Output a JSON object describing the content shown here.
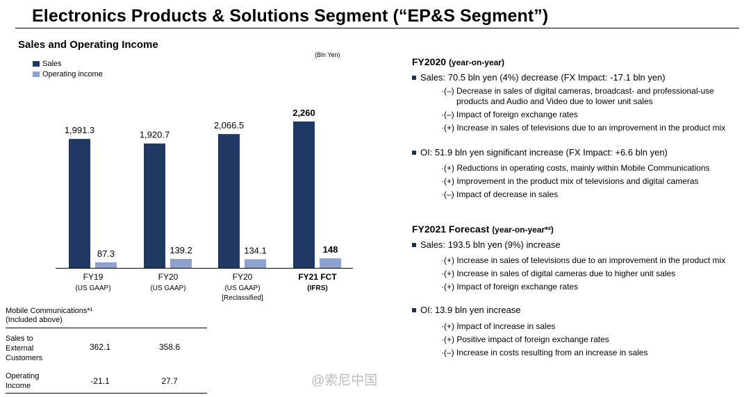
{
  "page": {
    "title": "Electronics Products & Solutions Segment (“EP&S Segment”)",
    "chart_heading": "Sales and Operating Income",
    "unit": "(Bln Yen)"
  },
  "colors": {
    "sales": "#1f3864",
    "operating_income": "#8ea2cf"
  },
  "chart_data": {
    "type": "bar",
    "categories": [
      "FY19",
      "FY20",
      "FY20",
      "FY21 FCT"
    ],
    "category_sublabels": [
      "(US GAAP)",
      "(US GAAP)",
      "(US GAAP)\n[Reclassified]",
      "(IFRS)"
    ],
    "series": [
      {
        "name": "Sales",
        "values": [
          1991.3,
          1920.7,
          2066.5,
          2260
        ],
        "labels": [
          "1,991.3",
          "1,920.7",
          "2,066.5",
          "2,260"
        ]
      },
      {
        "name": "Operating income",
        "values": [
          87.3,
          139.2,
          134.1,
          148
        ],
        "labels": [
          "87.3",
          "139.2",
          "134.1",
          "148"
        ]
      }
    ],
    "bold_category_index": 3,
    "ylim": [
      0,
      2400
    ],
    "legend_position": "top-left"
  },
  "table": {
    "heading_line1": "Mobile Communications*¹",
    "heading_line2": "(Included above)",
    "rows": [
      {
        "label_lines": [
          "Sales to",
          "External",
          "Customers"
        ],
        "values": [
          "362.1",
          "358.6"
        ]
      },
      {
        "label_lines": [
          "Operating",
          "Income"
        ],
        "values": [
          "-21.1",
          "27.7"
        ]
      }
    ]
  },
  "right": {
    "fy2020": {
      "heading": "FY2020",
      "heading_suffix": "(year-on-year)",
      "sales_bullet": "Sales: 70.5 bln yen (4%) decrease (FX Impact: -17.1 bln yen)",
      "sales_items": [
        "·(–) Decrease in sales of digital cameras, broadcast- and professional-use",
        "products and Audio and Video due to lower unit sales",
        "·(–) Impact of foreign exchange rates",
        "·(+) Increase in sales of televisions due to an improvement in the product mix"
      ],
      "oi_bullet": "OI: 51.9 bln yen significant increase (FX Impact: +6.6 bln yen)",
      "oi_items": [
        "·(+) Reductions in operating costs, mainly within Mobile Communications",
        "·(+) Improvement in the product mix of televisions and digital cameras",
        "·(–) Impact of decrease in sales"
      ]
    },
    "fy2021": {
      "heading": "FY2021 Forecast",
      "heading_suffix": "(year-on-year*²)",
      "sales_bullet": "Sales: 193.5 bln yen (9%) increase",
      "sales_items": [
        "·(+) Increase in sales of televisions due to an improvement in the product mix",
        "·(+) Increase in sales of digital cameras due to higher unit sales",
        "·(+) Impact of foreign exchange rates"
      ],
      "oi_bullet": "OI: 13.9 bln yen increase",
      "oi_items": [
        "·(+) Impact of increase in sales",
        "·(+) Positive impact of foreign exchange rates",
        "·(–) Increase in costs resulting from an increase in sales"
      ]
    }
  },
  "watermark": "@索尼中国"
}
